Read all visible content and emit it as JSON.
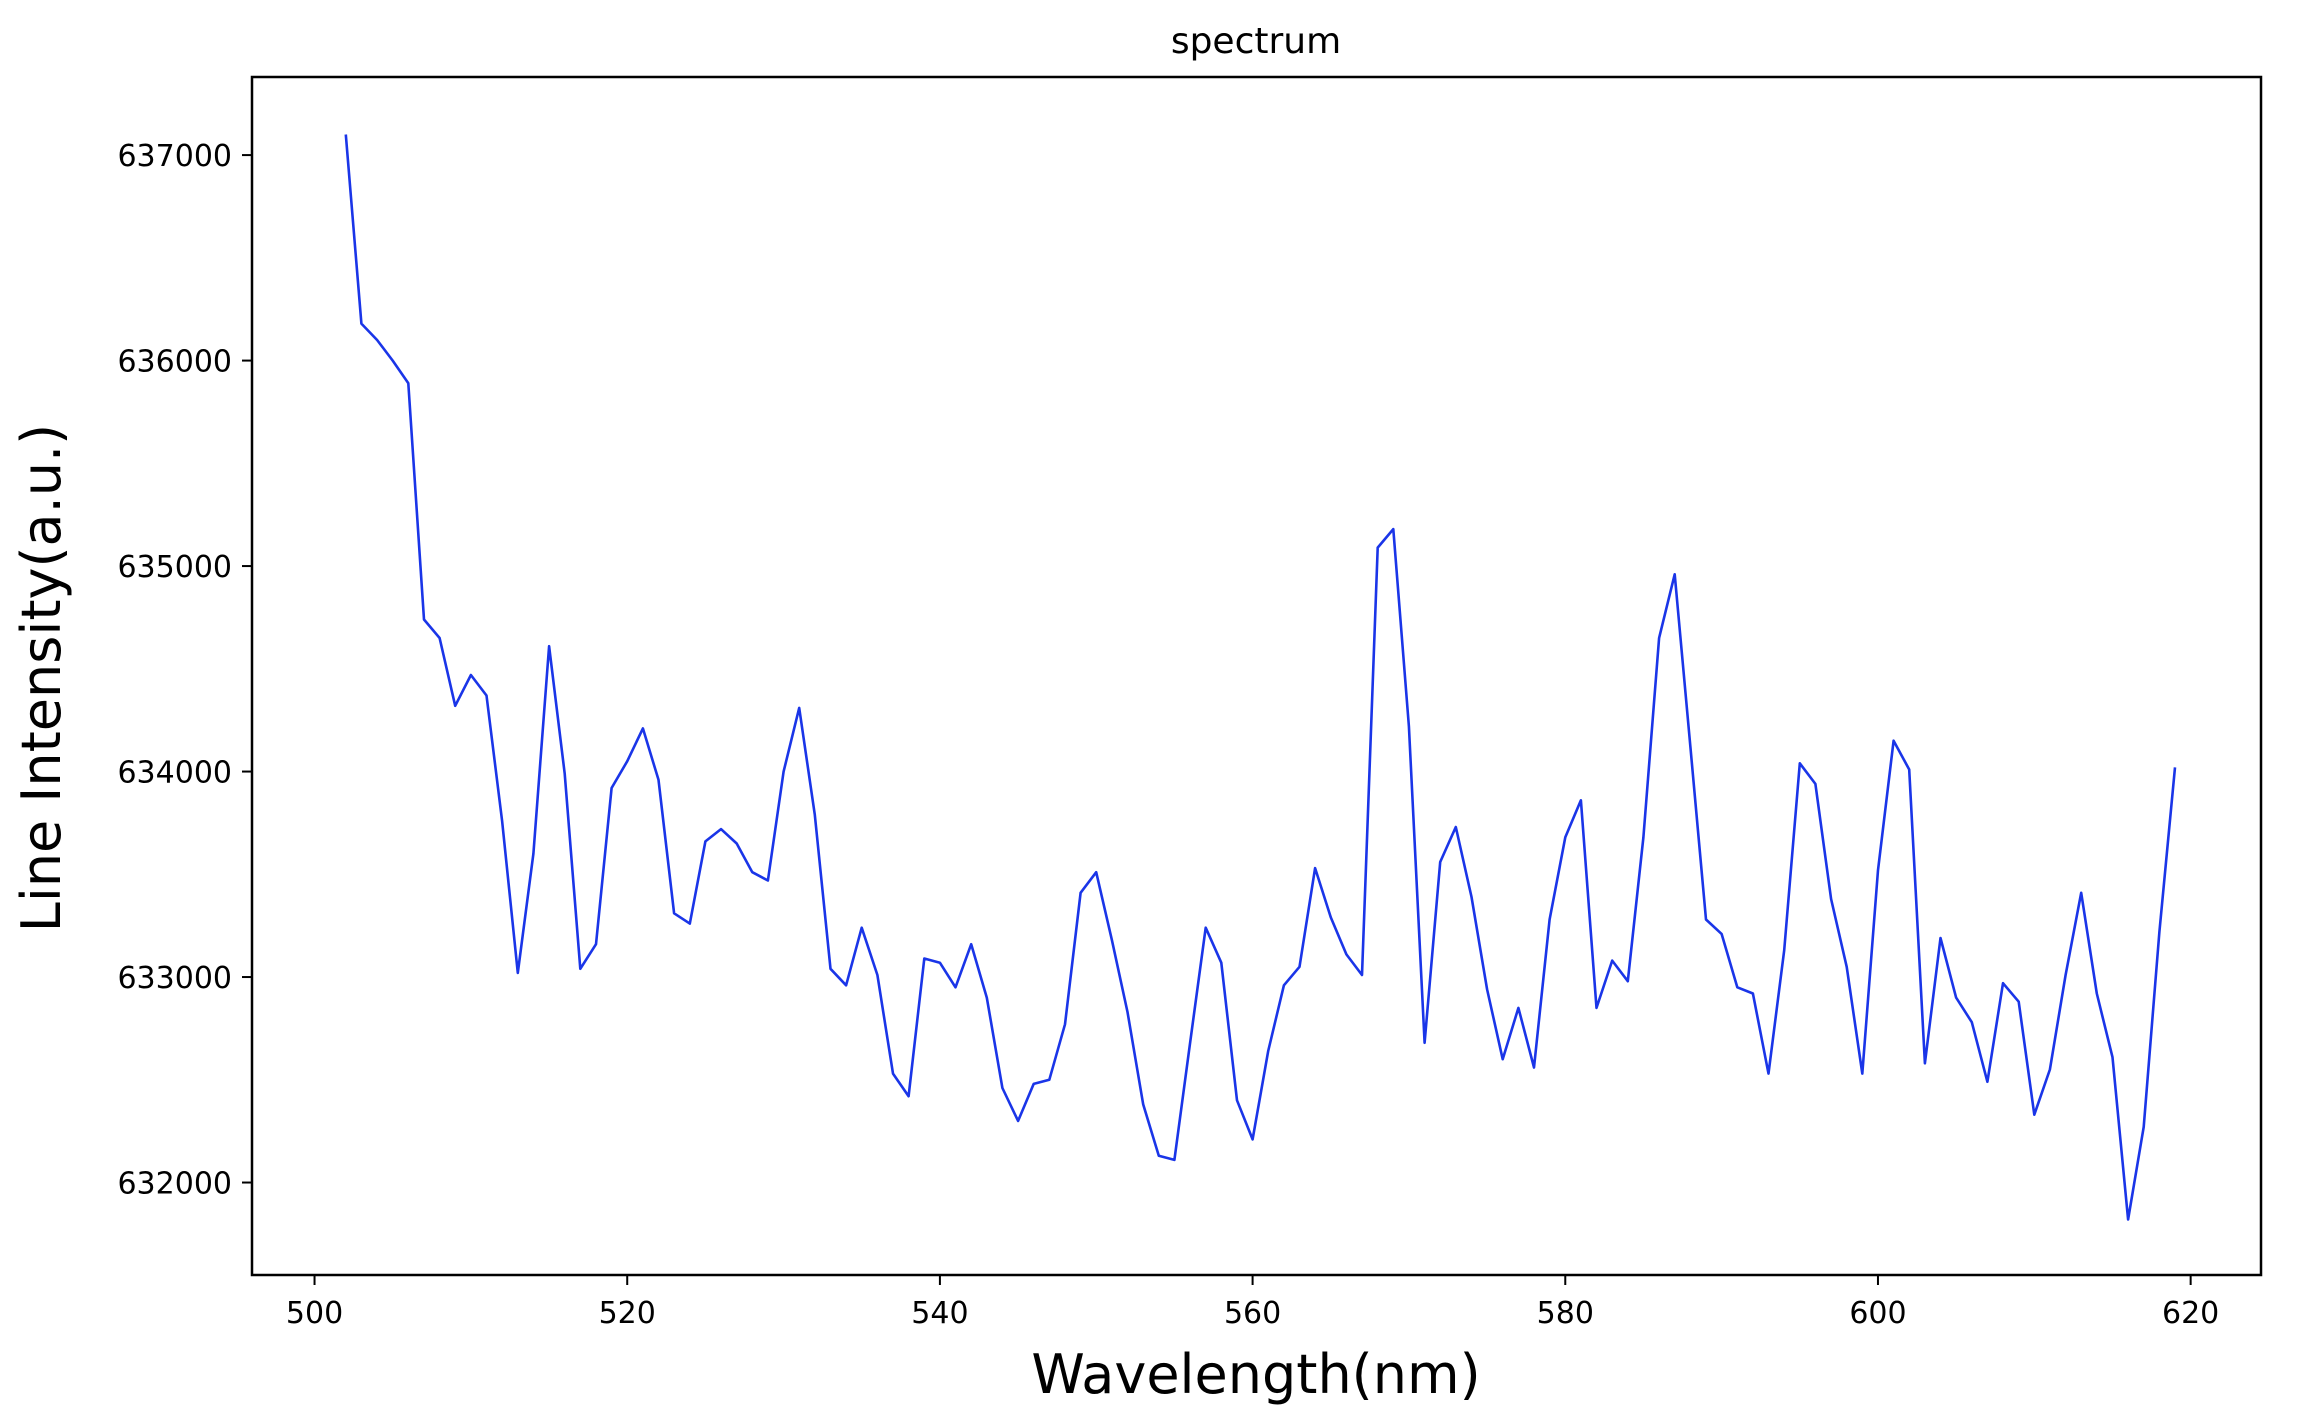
{
  "chart_data": {
    "type": "line",
    "title": "spectrum",
    "xlabel": "Wavelength(nm)",
    "ylabel": "Line Intensity(a.u.)",
    "xlim": [
      496,
      624.5
    ],
    "ylim": [
      631550,
      637380
    ],
    "xticks": [
      500,
      520,
      540,
      560,
      580,
      600,
      620
    ],
    "yticks": [
      632000,
      633000,
      634000,
      635000,
      636000,
      637000
    ],
    "grid": false,
    "line_color": "#1a35e8",
    "series": [
      {
        "x": [
          502,
          503,
          504,
          505,
          506,
          507,
          508,
          509,
          510,
          511,
          512,
          513,
          514,
          515,
          516,
          517,
          518,
          519,
          520,
          521,
          522,
          523,
          524,
          525,
          526,
          527,
          528,
          529,
          530,
          531,
          532,
          533,
          534,
          535,
          536,
          537,
          538,
          539,
          540,
          541,
          542,
          543,
          544,
          545,
          546,
          547,
          548,
          549,
          550,
          551,
          552,
          553,
          554,
          555,
          556,
          557,
          558,
          559,
          560,
          561,
          562,
          563,
          564,
          565,
          566,
          567,
          568,
          569,
          570,
          571,
          572,
          573,
          574,
          575,
          576,
          577,
          578,
          579,
          580,
          581,
          582,
          583,
          584,
          585,
          586,
          587,
          588,
          589,
          590,
          591,
          592,
          593,
          594,
          595,
          596,
          597,
          598,
          599,
          600,
          601,
          602,
          603,
          604,
          605,
          606,
          607,
          608,
          609,
          610,
          611,
          612,
          613,
          614,
          615,
          616,
          617,
          618,
          619
        ],
        "values": [
          637100,
          636180,
          636100,
          636000,
          635890,
          634740,
          634650,
          634320,
          634470,
          634370,
          633760,
          633020,
          633600,
          634610,
          633990,
          633040,
          633160,
          633920,
          634050,
          634210,
          633960,
          633310,
          633260,
          633660,
          633720,
          633650,
          633510,
          633470,
          634000,
          634310,
          633790,
          633040,
          632960,
          633240,
          633010,
          632530,
          632420,
          633090,
          633070,
          632950,
          633160,
          632900,
          632460,
          632300,
          632480,
          632500,
          632770,
          633410,
          633510,
          633180,
          632830,
          632380,
          632130,
          632110,
          632680,
          633240,
          633070,
          632400,
          632210,
          632640,
          632960,
          633050,
          633530,
          633290,
          633110,
          633010,
          635090,
          635180,
          634220,
          632680,
          633560,
          633730,
          633390,
          632940,
          632600,
          632850,
          632560,
          633280,
          633680,
          633860,
          632850,
          633080,
          632980,
          633680,
          634650,
          634960,
          634120,
          633280,
          633210,
          632950,
          632920,
          632530,
          633130,
          634040,
          633940,
          633380,
          633050,
          632530,
          633520,
          634150,
          634010,
          632580,
          633190,
          632900,
          632780,
          632490,
          632970,
          632880,
          632330,
          632550,
          633010,
          633410,
          632920,
          632610,
          631820,
          632270,
          633220,
          634020
        ]
      }
    ]
  }
}
